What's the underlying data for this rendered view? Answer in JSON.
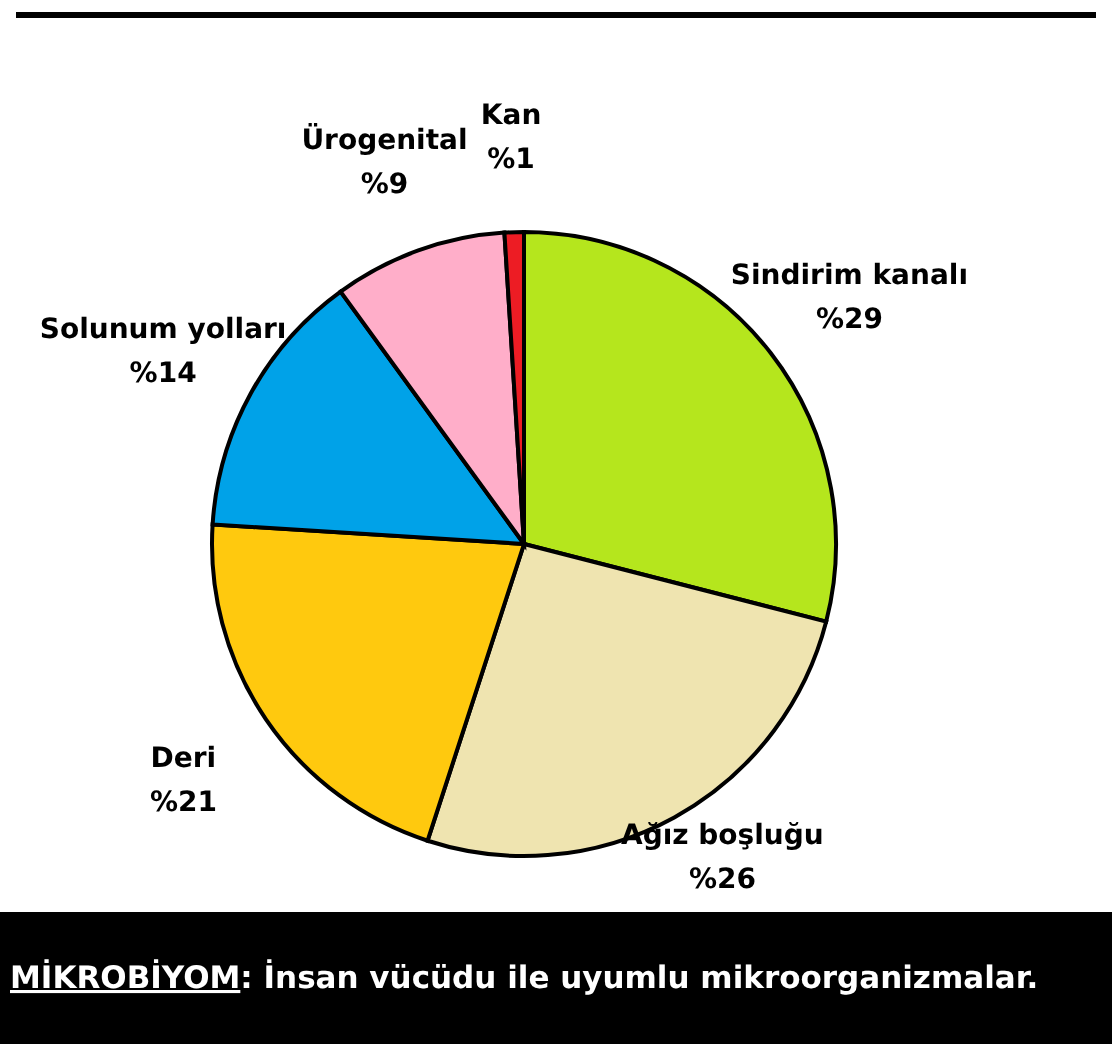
{
  "chart_data": {
    "type": "pie",
    "categories": [
      "Sindirim kanalı",
      "Ağız boşluğu",
      "Deri",
      "Solunum yolları",
      "Ürogenital",
      "Kan"
    ],
    "values": [
      29,
      26,
      21,
      14,
      9,
      1
    ],
    "value_labels": [
      "%29",
      "%26",
      "%21",
      "%14",
      "%9",
      "%1"
    ],
    "colors": [
      "#b5e61d",
      "#efe4b0",
      "#ffc90e",
      "#00a2e8",
      "#ffaec9",
      "#ed1c24"
    ],
    "annotations": [
      "MİKROBİYOM",
      ": İnsan vücüdu ile uyumlu mikroorganizmalar."
    ]
  }
}
